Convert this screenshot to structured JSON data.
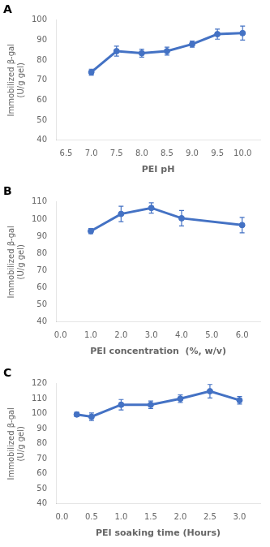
{
  "chart_data": [
    {
      "type": "line",
      "title": "A",
      "x": [
        7.0,
        7.5,
        8.0,
        8.5,
        9.0,
        9.5,
        10.0
      ],
      "values": [
        74.0,
        84.5,
        83.5,
        84.5,
        88.0,
        93.0,
        93.5
      ],
      "yerr": [
        1.5,
        2.5,
        2.0,
        2.0,
        1.5,
        2.5,
        3.5
      ],
      "xlabel": "PEI pH",
      "ylabel": "Immobilized β-gal\n(U/g gel)",
      "xlim": [
        6.3,
        10.35
      ],
      "xticks": [
        6.5,
        {
          "value": 7.0,
          "label": "7.0"
        },
        7.5,
        {
          "value": 8.0,
          "label": "8.0"
        },
        8.5,
        {
          "value": 9.0,
          "label": "9.0"
        },
        9.5,
        {
          "value": 10.0,
          "label": "10.0"
        }
      ],
      "ylim": [
        40,
        100
      ],
      "yticks": [
        40,
        50,
        60,
        70,
        80,
        90,
        100
      ],
      "color": "#4472C4",
      "marker": "circle",
      "grid": false
    },
    {
      "type": "line",
      "title": "B",
      "x": [
        1.0,
        2.0,
        3.0,
        4.0,
        6.0
      ],
      "values": [
        93.0,
        103.0,
        106.5,
        100.5,
        96.5
      ],
      "yerr": [
        1.5,
        4.5,
        3.0,
        4.5,
        4.5
      ],
      "xlabel": "PEI concentration  (%, w/v)",
      "ylabel": "Immobilized β-gal\n(U/g gel)",
      "xlim": [
        -0.15,
        6.6
      ],
      "xticks": [
        {
          "value": 0.0,
          "label": "0.0"
        },
        {
          "value": 1.0,
          "label": "1.0"
        },
        {
          "value": 2.0,
          "label": "2.0"
        },
        {
          "value": 3.0,
          "label": "3.0"
        },
        {
          "value": 4.0,
          "label": "4.0"
        },
        {
          "value": 5.0,
          "label": "5.0"
        },
        {
          "value": 6.0,
          "label": "6.0"
        }
      ],
      "ylim": [
        40,
        110
      ],
      "yticks": [
        40,
        50,
        60,
        70,
        80,
        90,
        100,
        110
      ],
      "color": "#4472C4",
      "marker": "circle",
      "grid": false
    },
    {
      "type": "line",
      "title": "C",
      "x": [
        0.25,
        0.5,
        1.0,
        1.5,
        2.0,
        2.5,
        3.0
      ],
      "values": [
        99.5,
        98.0,
        106.0,
        106.0,
        110.0,
        115.0,
        109.0
      ],
      "yerr": [
        1.5,
        2.5,
        3.5,
        2.5,
        2.5,
        4.5,
        2.5
      ],
      "xlabel": "PEI soaking time (Hours)",
      "ylabel": "Immobilized β-gal\n(U/g gel)",
      "xlim": [
        -0.1,
        3.35
      ],
      "xticks": [
        {
          "value": 0.0,
          "label": "0.0"
        },
        0.5,
        {
          "value": 1.0,
          "label": "1.0"
        },
        1.5,
        {
          "value": 2.0,
          "label": "2.0"
        },
        2.5,
        {
          "value": 3.0,
          "label": "3.0"
        }
      ],
      "ylim": [
        40,
        120
      ],
      "yticks": [
        40,
        50,
        60,
        70,
        80,
        90,
        100,
        110,
        120
      ],
      "color": "#4472C4",
      "marker": "circle",
      "grid": false
    }
  ]
}
